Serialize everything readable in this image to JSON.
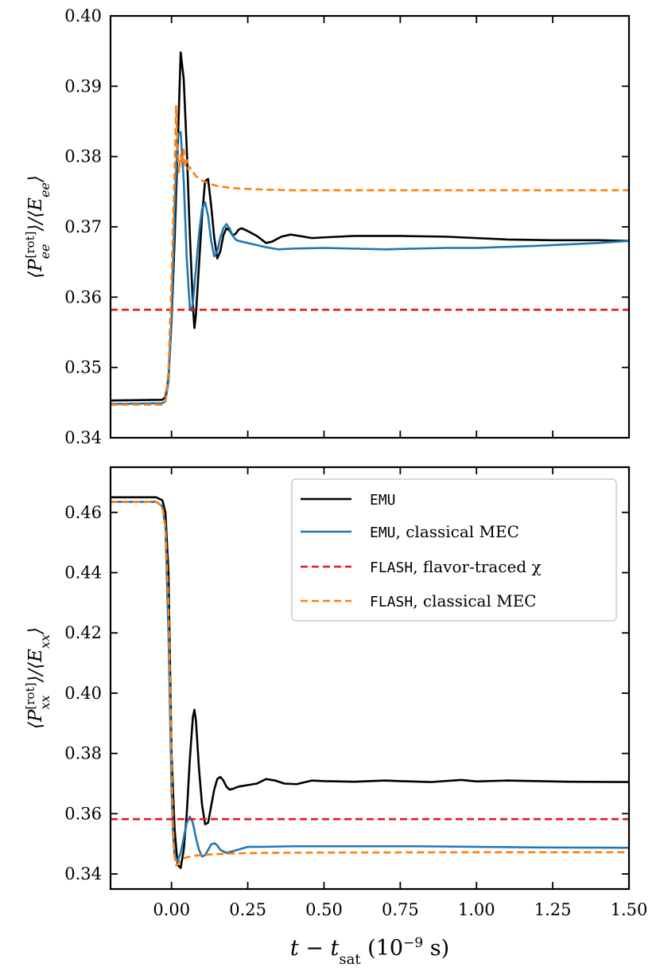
{
  "colors": {
    "emu": "#000000",
    "emu_mec": "#1f77b4",
    "flash_flavor": "#e41a1c",
    "flash_mec": "#ff7f0e"
  },
  "xaxis": {
    "label": "t − t_sat (10^−9 s)",
    "label_main": "t − t",
    "label_sub": "sat",
    "label_unit_open": " (10",
    "label_exp": "−9",
    "label_unit_close": " s)"
  },
  "legend": {
    "entries": [
      {
        "code": "EMU",
        "text": ""
      },
      {
        "code": "EMU",
        "text": ", classical MEC"
      },
      {
        "code": "FLASH",
        "text": ", flavor-traced χ"
      },
      {
        "code": "FLASH",
        "text": ", classical MEC"
      }
    ]
  },
  "chart_data": [
    {
      "type": "line",
      "panel": "top",
      "ylabel": "⟨P_ee^[rot]⟩/⟨E_ee⟩",
      "ylabel_parts": {
        "open": "⟨P",
        "sub": "ee",
        "sup": "[rot]",
        "mid": "⟩/⟨E",
        "sub2": "ee",
        "close": "⟩"
      },
      "xlim": [
        -0.2,
        1.5
      ],
      "ylim": [
        0.34,
        0.4
      ],
      "yticks": [
        "0.34",
        "0.35",
        "0.36",
        "0.37",
        "0.38",
        "0.39",
        "0.40"
      ],
      "xticks": [
        "0.00",
        "0.25",
        "0.50",
        "0.75",
        "1.00",
        "1.25",
        "1.50"
      ],
      "series": [
        {
          "name": "EMU",
          "color": "#000000",
          "dash": "solid",
          "x": [
            -0.2,
            -0.03,
            -0.02,
            -0.01,
            0.0,
            0.01,
            0.02,
            0.03,
            0.04,
            0.05,
            0.06,
            0.07,
            0.075,
            0.08,
            0.09,
            0.1,
            0.11,
            0.12,
            0.13,
            0.14,
            0.15,
            0.16,
            0.17,
            0.18,
            0.19,
            0.2,
            0.21,
            0.22,
            0.23,
            0.25,
            0.28,
            0.31,
            0.33,
            0.36,
            0.39,
            0.42,
            0.46,
            0.5,
            0.6,
            0.75,
            0.9,
            1.0,
            1.1,
            1.25,
            1.4,
            1.5
          ],
          "y": [
            0.3453,
            0.3454,
            0.3458,
            0.3485,
            0.3565,
            0.368,
            0.381,
            0.3948,
            0.391,
            0.381,
            0.369,
            0.359,
            0.3556,
            0.3575,
            0.3645,
            0.3715,
            0.3765,
            0.3768,
            0.373,
            0.3685,
            0.3655,
            0.3665,
            0.3688,
            0.3698,
            0.3695,
            0.3688,
            0.369,
            0.3696,
            0.3698,
            0.3694,
            0.3687,
            0.3677,
            0.3679,
            0.3686,
            0.3689,
            0.3687,
            0.3684,
            0.3685,
            0.3687,
            0.3687,
            0.3686,
            0.3684,
            0.3682,
            0.3681,
            0.3681,
            0.368
          ]
        },
        {
          "name": "EMU, classical MEC",
          "color": "#1f77b4",
          "dash": "solid",
          "x": [
            -0.2,
            -0.03,
            -0.02,
            -0.01,
            0.0,
            0.01,
            0.02,
            0.03,
            0.04,
            0.05,
            0.06,
            0.065,
            0.07,
            0.08,
            0.09,
            0.1,
            0.11,
            0.12,
            0.13,
            0.14,
            0.15,
            0.16,
            0.17,
            0.18,
            0.19,
            0.2,
            0.21,
            0.22,
            0.23,
            0.24,
            0.27,
            0.31,
            0.35,
            0.4,
            0.5,
            0.7,
            0.9,
            1.0,
            1.2,
            1.4,
            1.5
          ],
          "y": [
            0.3448,
            0.3449,
            0.3452,
            0.348,
            0.357,
            0.3725,
            0.383,
            0.3835,
            0.3765,
            0.3655,
            0.3585,
            0.3581,
            0.3592,
            0.364,
            0.369,
            0.3725,
            0.3735,
            0.3715,
            0.368,
            0.3658,
            0.3665,
            0.3685,
            0.3698,
            0.3704,
            0.3698,
            0.3688,
            0.3682,
            0.368,
            0.3679,
            0.3678,
            0.3675,
            0.3671,
            0.3668,
            0.3669,
            0.367,
            0.3668,
            0.367,
            0.367,
            0.3673,
            0.3677,
            0.368
          ]
        },
        {
          "name": "FLASH, flavor-traced χ",
          "color": "#e41a1c",
          "dash": "dashed",
          "x": [
            -0.2,
            1.5
          ],
          "y": [
            0.3582,
            0.3582
          ]
        },
        {
          "name": "FLASH, classical MEC",
          "color": "#ff7f0e",
          "dash": "dashed",
          "x": [
            -0.2,
            -0.03,
            -0.02,
            -0.01,
            0.0,
            0.01,
            0.015,
            0.02,
            0.025,
            0.03,
            0.035,
            0.04,
            0.045,
            0.05,
            0.055,
            0.06,
            0.07,
            0.08,
            0.1,
            0.12,
            0.15,
            0.2,
            0.25,
            0.3,
            0.4,
            0.5,
            0.7,
            1.0,
            1.5
          ],
          "y": [
            0.3447,
            0.3447,
            0.345,
            0.3495,
            0.3625,
            0.3778,
            0.3872,
            0.3805,
            0.3778,
            0.3802,
            0.379,
            0.381,
            0.3785,
            0.3795,
            0.3782,
            0.3785,
            0.3778,
            0.3772,
            0.3766,
            0.3762,
            0.3758,
            0.3755,
            0.3754,
            0.3753,
            0.3752,
            0.3752,
            0.3752,
            0.3752,
            0.3752
          ]
        }
      ]
    },
    {
      "type": "line",
      "panel": "bottom",
      "ylabel": "⟨P_xx^[rot]⟩/⟨E_xx⟩",
      "ylabel_parts": {
        "open": "⟨P",
        "sub": "xx",
        "sup": "[rot]",
        "mid": "⟩/⟨E",
        "sub2": "xx",
        "close": "⟩"
      },
      "xlabel": "t − t_sat (10^−9 s)",
      "xlim": [
        -0.2,
        1.5
      ],
      "ylim": [
        0.335,
        0.475
      ],
      "yticks": [
        "0.34",
        "0.36",
        "0.38",
        "0.40",
        "0.42",
        "0.44",
        "0.46"
      ],
      "xticks": [
        "0.00",
        "0.25",
        "0.50",
        "0.75",
        "1.00",
        "1.25",
        "1.50"
      ],
      "series": [
        {
          "name": "EMU",
          "color": "#000000",
          "dash": "solid",
          "x": [
            -0.2,
            -0.05,
            -0.03,
            -0.02,
            -0.01,
            0.0,
            0.01,
            0.02,
            0.03,
            0.04,
            0.05,
            0.06,
            0.07,
            0.075,
            0.08,
            0.09,
            0.1,
            0.11,
            0.12,
            0.13,
            0.14,
            0.15,
            0.16,
            0.17,
            0.18,
            0.19,
            0.2,
            0.22,
            0.25,
            0.28,
            0.31,
            0.34,
            0.37,
            0.41,
            0.46,
            0.5,
            0.6,
            0.7,
            0.75,
            0.85,
            0.95,
            1.0,
            1.1,
            1.2,
            1.3,
            1.5
          ],
          "y": [
            0.465,
            0.465,
            0.464,
            0.46,
            0.44,
            0.38,
            0.355,
            0.343,
            0.342,
            0.348,
            0.36,
            0.378,
            0.392,
            0.3945,
            0.391,
            0.375,
            0.363,
            0.3565,
            0.357,
            0.3625,
            0.368,
            0.3715,
            0.3722,
            0.371,
            0.369,
            0.368,
            0.3682,
            0.369,
            0.3695,
            0.37,
            0.3715,
            0.371,
            0.37,
            0.3698,
            0.371,
            0.3708,
            0.3706,
            0.371,
            0.3708,
            0.3705,
            0.3712,
            0.3707,
            0.371,
            0.3708,
            0.3706,
            0.3705
          ]
        },
        {
          "name": "EMU, classical MEC",
          "color": "#1f77b4",
          "dash": "solid",
          "x": [
            -0.2,
            -0.05,
            -0.03,
            -0.02,
            -0.01,
            0.0,
            0.005,
            0.01,
            0.02,
            0.03,
            0.04,
            0.05,
            0.06,
            0.07,
            0.08,
            0.09,
            0.1,
            0.11,
            0.12,
            0.13,
            0.14,
            0.15,
            0.16,
            0.18,
            0.2,
            0.25,
            0.3,
            0.4,
            0.5,
            0.6,
            0.8,
            1.0,
            1.2,
            1.5
          ],
          "y": [
            0.4635,
            0.4635,
            0.462,
            0.455,
            0.42,
            0.368,
            0.353,
            0.346,
            0.3442,
            0.347,
            0.352,
            0.357,
            0.359,
            0.357,
            0.352,
            0.348,
            0.3458,
            0.3462,
            0.348,
            0.3498,
            0.3502,
            0.3495,
            0.348,
            0.347,
            0.3475,
            0.349,
            0.349,
            0.3492,
            0.3492,
            0.3492,
            0.3492,
            0.349,
            0.3488,
            0.3487
          ]
        },
        {
          "name": "FLASH, flavor-traced χ",
          "color": "#e41a1c",
          "dash": "dashed",
          "x": [
            -0.2,
            1.5
          ],
          "y": [
            0.3582,
            0.3582
          ]
        },
        {
          "name": "FLASH, classical MEC",
          "color": "#ff7f0e",
          "dash": "dashed",
          "x": [
            -0.2,
            -0.05,
            -0.03,
            -0.02,
            -0.01,
            0.0,
            0.005,
            0.01,
            0.015,
            0.02,
            0.03,
            0.04,
            0.05,
            0.07,
            0.1,
            0.15,
            0.2,
            0.3,
            0.5,
            1.0,
            1.5
          ],
          "y": [
            0.4635,
            0.4635,
            0.462,
            0.455,
            0.43,
            0.378,
            0.355,
            0.346,
            0.3428,
            0.3432,
            0.3445,
            0.3452,
            0.3455,
            0.346,
            0.3463,
            0.3466,
            0.3468,
            0.347,
            0.3471,
            0.3472,
            0.3472
          ]
        }
      ]
    }
  ]
}
